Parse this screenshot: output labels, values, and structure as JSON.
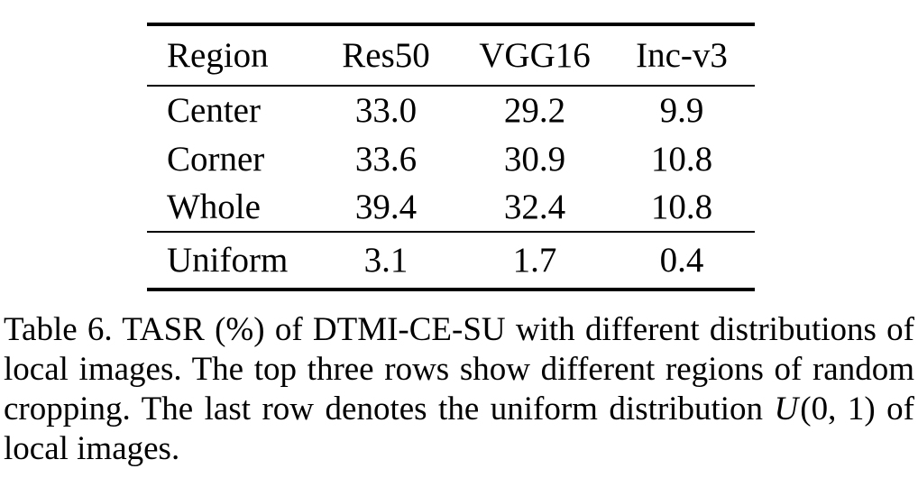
{
  "table": {
    "columns": {
      "region": "Region",
      "res50": "Res50",
      "vgg16": "VGG16",
      "incv3": "Inc-v3"
    },
    "rows": [
      {
        "label": "Center",
        "values": [
          "33.0",
          "29.2",
          "9.9"
        ]
      },
      {
        "label": "Corner",
        "values": [
          "33.6",
          "30.9",
          "10.8"
        ]
      },
      {
        "label": "Whole",
        "values": [
          "39.4",
          "32.4",
          "10.8"
        ]
      }
    ],
    "uniform_row": {
      "label": "Uniform",
      "values": [
        "3.1",
        "1.7",
        "0.4"
      ]
    }
  },
  "caption": {
    "line1": "Table 6. TASR (%) of DTMI-CE-SU with different distributions of",
    "line2": "local images. The top three rows show different regions of random",
    "line3_before": "cropping. The last row denotes the uniform distribution ",
    "math_symbol": "U",
    "math_args": "(0, 1)",
    "line3_after": " of",
    "line4": "local images."
  },
  "colors": {
    "text": "#000000",
    "background": "#ffffff",
    "rule": "#000000"
  }
}
